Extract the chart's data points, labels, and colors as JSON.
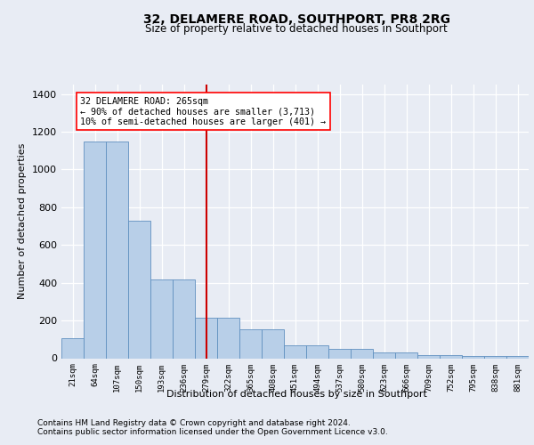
{
  "title": "32, DELAMERE ROAD, SOUTHPORT, PR8 2RG",
  "subtitle": "Size of property relative to detached houses in Southport",
  "xlabel": "Distribution of detached houses by size in Southport",
  "ylabel": "Number of detached properties",
  "bar_labels": [
    "21sqm",
    "64sqm",
    "107sqm",
    "150sqm",
    "193sqm",
    "236sqm",
    "279sqm",
    "322sqm",
    "365sqm",
    "408sqm",
    "451sqm",
    "494sqm",
    "537sqm",
    "580sqm",
    "623sqm",
    "666sqm",
    "709sqm",
    "752sqm",
    "795sqm",
    "838sqm",
    "881sqm"
  ],
  "bar_values": [
    105,
    1150,
    1150,
    730,
    415,
    415,
    215,
    215,
    155,
    155,
    70,
    70,
    48,
    48,
    30,
    30,
    18,
    18,
    12,
    12,
    12
  ],
  "bar_color": "#b8cfe8",
  "bar_edge_color": "#6090c0",
  "vline_x_idx": 6,
  "vline_color": "#cc0000",
  "annotation_line1": "32 DELAMERE ROAD: 265sqm",
  "annotation_line2": "← 90% of detached houses are smaller (3,713)",
  "annotation_line3": "10% of semi-detached houses are larger (401) →",
  "ylim": [
    0,
    1450
  ],
  "yticks": [
    0,
    200,
    400,
    600,
    800,
    1000,
    1200,
    1400
  ],
  "footer1": "Contains HM Land Registry data © Crown copyright and database right 2024.",
  "footer2": "Contains public sector information licensed under the Open Government Licence v3.0.",
  "bg_color": "#e8ecf4",
  "grid_color": "#ffffff"
}
